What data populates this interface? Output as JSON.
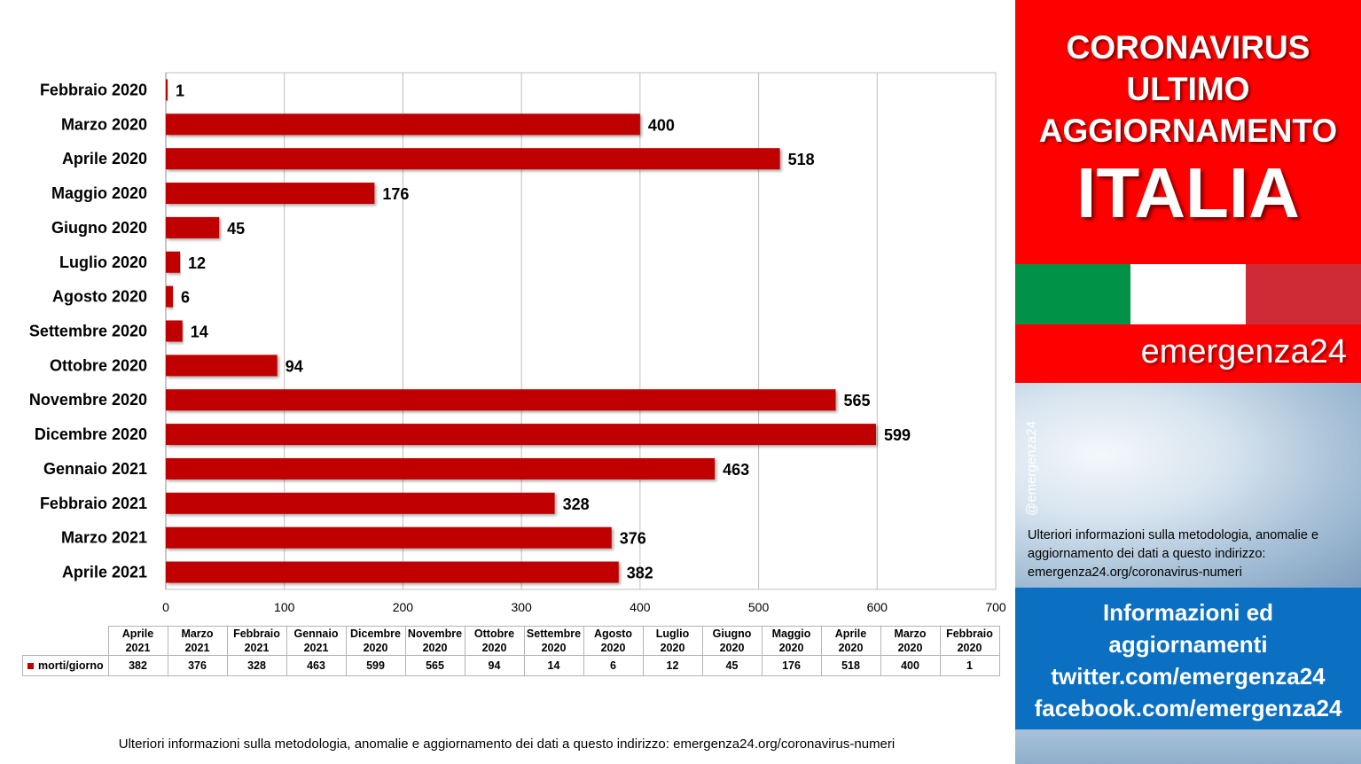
{
  "chart_data": {
    "type": "bar",
    "orientation": "horizontal",
    "categories": [
      "Febbraio 2020",
      "Marzo 2020",
      "Aprile 2020",
      "Maggio 2020",
      "Giugno 2020",
      "Luglio 2020",
      "Agosto 2020",
      "Settembre 2020",
      "Ottobre 2020",
      "Novembre 2020",
      "Dicembre 2020",
      "Gennaio 2021",
      "Febbraio 2021",
      "Marzo 2021",
      "Aprile 2021"
    ],
    "values": [
      1,
      400,
      518,
      176,
      45,
      12,
      6,
      14,
      94,
      565,
      599,
      463,
      328,
      376,
      382
    ],
    "series": [
      {
        "name": "morti/giorno",
        "values": [
          1,
          400,
          518,
          176,
          45,
          12,
          6,
          14,
          94,
          565,
          599,
          463,
          328,
          376,
          382
        ],
        "color": "#c00000"
      }
    ],
    "xlim": [
      0,
      700
    ],
    "xticks": [
      0,
      100,
      200,
      300,
      400,
      500,
      600,
      700
    ],
    "grid": true,
    "data_labels": true,
    "table": {
      "columns": [
        [
          "Aprile",
          "2021"
        ],
        [
          "Marzo",
          "2021"
        ],
        [
          "Febbraio",
          "2021"
        ],
        [
          "Gennaio",
          "2021"
        ],
        [
          "Dicembre",
          "2020"
        ],
        [
          "Novembre",
          "2020"
        ],
        [
          "Ottobre",
          "2020"
        ],
        [
          "Settembre",
          "2020"
        ],
        [
          "Agosto",
          "2020"
        ],
        [
          "Luglio",
          "2020"
        ],
        [
          "Giugno",
          "2020"
        ],
        [
          "Maggio",
          "2020"
        ],
        [
          "Aprile",
          "2020"
        ],
        [
          "Marzo",
          "2020"
        ],
        [
          "Febbraio",
          "2020"
        ]
      ],
      "series_label": "morti/giorno",
      "values": [
        "382",
        "376",
        "328",
        "463",
        "599",
        "565",
        "94",
        "14",
        "6",
        "12",
        "45",
        "176",
        "518",
        "400",
        "1"
      ]
    }
  },
  "footnote": "Ulteriori informazioni sulla metodologia, anomalie e aggiornamento dei dati a questo indirizzo: emergenza24.org/coronavirus-numeri",
  "sidebar": {
    "title_line1": "CORONAVIRUS",
    "title_line2": "ULTIMO",
    "title_line3": "AGGIORNAMENTO",
    "country": "ITALIA",
    "flag_colors": [
      "#009246",
      "#ffffff",
      "#ce2b37"
    ],
    "brand": "emergenza24",
    "handle": "@emergenza24",
    "note": "Ulteriori informazioni sulla metodologia, anomalie e aggiornamento dei dati a questo indirizzo: emergenza24.org/coronavirus-numeri",
    "info_line1": "Informazioni ed",
    "info_line2": "aggiornamenti",
    "info_line3": "twitter.com/emergenza24",
    "info_line4": "facebook.com/emergenza24",
    "accent_red": "#ff0000",
    "accent_blue": "#0b6fc2"
  }
}
